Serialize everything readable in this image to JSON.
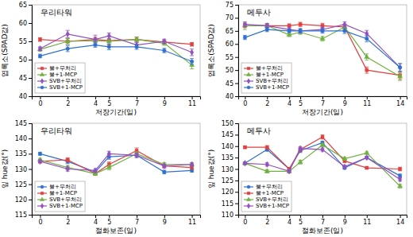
{
  "chart_data": [
    {
      "type": "line",
      "title": "우리타워",
      "xlabel": "저장기간(일)",
      "ylabel": "엽록소(SPAD값)",
      "x": [
        0,
        2,
        4,
        5,
        7,
        9,
        11
      ],
      "xlim": [
        -0.6,
        11.6
      ],
      "xticks": [
        0,
        2,
        4,
        5,
        7,
        9,
        11
      ],
      "ylim": [
        40,
        65
      ],
      "yticks": [
        40,
        45,
        50,
        55,
        60,
        65
      ],
      "grid": false,
      "legend": "lower left",
      "series": [
        {
          "name": "물+무처리",
          "color": "#e04040",
          "marker": "square",
          "values": [
            55.5,
            55.0,
            55.5,
            55.2,
            55.5,
            54.8,
            54.2
          ],
          "errors": [
            0.5,
            0.8,
            0.6,
            1.2,
            0.7,
            0.6,
            0.5
          ]
        },
        {
          "name": "물+1-MCP",
          "color": "#70b040",
          "marker": "triangle",
          "values": [
            52.8,
            55.0,
            55.2,
            55.0,
            55.5,
            54.5,
            48.5
          ],
          "errors": [
            0.5,
            0.8,
            0.6,
            0.8,
            0.7,
            0.6,
            1.0
          ]
        },
        {
          "name": "SVB+무처리",
          "color": "#9050c0",
          "marker": "diamond",
          "values": [
            53.0,
            57.0,
            55.5,
            56.5,
            54.0,
            55.0,
            52.0
          ],
          "errors": [
            0.5,
            1.0,
            1.2,
            0.8,
            0.7,
            0.6,
            0.9
          ]
        },
        {
          "name": "SVB+1-MCP",
          "color": "#3070d0",
          "marker": "circle",
          "values": [
            51.0,
            53.0,
            54.0,
            53.5,
            53.5,
            52.5,
            49.5
          ],
          "errors": [
            0.5,
            0.8,
            0.6,
            0.8,
            0.7,
            0.6,
            0.8
          ]
        }
      ]
    },
    {
      "type": "line",
      "title": "메두사",
      "xlabel": "저장기간(일)",
      "ylabel": "엽록소(SPAD값)",
      "x": [
        0,
        2,
        4,
        5,
        7,
        9,
        11,
        14
      ],
      "xlim": [
        -0.6,
        14.6
      ],
      "xticks": [
        0,
        2,
        4,
        5,
        7,
        9,
        11,
        14
      ],
      "ylim": [
        40,
        75
      ],
      "yticks": [
        40,
        45,
        50,
        55,
        60,
        65,
        70,
        75
      ],
      "grid": false,
      "legend": "lower left",
      "series": [
        {
          "name": "물+무처리",
          "color": "#e04040",
          "marker": "square",
          "values": [
            67.0,
            67.0,
            67.0,
            67.5,
            67.0,
            66.5,
            50.0,
            48.0
          ],
          "errors": [
            0.8,
            0.8,
            0.7,
            0.8,
            0.9,
            1.0,
            1.2,
            1.5
          ]
        },
        {
          "name": "물+1-MCP",
          "color": "#70b040",
          "marker": "triangle",
          "values": [
            67.0,
            67.0,
            63.5,
            64.5,
            62.0,
            66.5,
            55.0,
            47.5
          ],
          "errors": [
            1.5,
            0.8,
            0.7,
            0.8,
            0.9,
            1.0,
            1.2,
            1.5
          ]
        },
        {
          "name": "SVB+무처리",
          "color": "#9050c0",
          "marker": "diamond",
          "values": [
            67.5,
            67.0,
            65.5,
            65.0,
            65.5,
            67.5,
            64.0,
            51.0
          ],
          "errors": [
            0.8,
            0.8,
            0.7,
            0.8,
            0.9,
            1.0,
            1.2,
            1.5
          ]
        },
        {
          "name": "SVB+1-MCP",
          "color": "#3070d0",
          "marker": "circle",
          "values": [
            62.5,
            65.5,
            65.0,
            65.0,
            65.0,
            65.0,
            62.0,
            51.0
          ],
          "errors": [
            0.8,
            0.8,
            0.7,
            0.8,
            0.9,
            1.0,
            1.2,
            1.5
          ]
        }
      ]
    },
    {
      "type": "line",
      "title": "우리타워",
      "xlabel": "절화보존(일)",
      "ylabel": "잎 hue값(°)",
      "x": [
        0,
        2,
        4,
        5,
        7,
        9,
        11
      ],
      "xlim": [
        -0.6,
        11.6
      ],
      "xticks": [
        0,
        2,
        4,
        5,
        7,
        9,
        11
      ],
      "ylim": [
        115,
        145
      ],
      "yticks": [
        115,
        120,
        125,
        130,
        135,
        140,
        145
      ],
      "grid": false,
      "legend": "lower left",
      "series": [
        {
          "name": "물+무처리",
          "color": "#3070d0",
          "marker": "circle",
          "values": [
            135.0,
            132.5,
            129.0,
            134.0,
            134.5,
            129.0,
            129.5
          ],
          "errors": [
            0.5,
            0.7,
            0.6,
            0.8,
            0.7,
            0.6,
            0.5
          ]
        },
        {
          "name": "물+1-MCP",
          "color": "#e04040",
          "marker": "square",
          "values": [
            132.5,
            133.0,
            128.5,
            131.5,
            136.0,
            131.0,
            130.5
          ],
          "errors": [
            0.5,
            0.7,
            0.6,
            0.8,
            0.9,
            0.6,
            0.5
          ]
        },
        {
          "name": "SVB+무처리",
          "color": "#70b040",
          "marker": "triangle",
          "values": [
            133.0,
            130.5,
            128.5,
            130.5,
            135.0,
            131.5,
            131.5
          ],
          "errors": [
            0.5,
            0.7,
            0.6,
            0.8,
            0.7,
            0.6,
            0.5
          ]
        },
        {
          "name": "SVB+1-MCP",
          "color": "#9050c0",
          "marker": "diamond",
          "values": [
            132.5,
            130.0,
            129.5,
            135.0,
            134.5,
            131.0,
            131.5
          ],
          "errors": [
            0.5,
            0.7,
            0.6,
            0.8,
            0.7,
            0.6,
            0.5
          ]
        }
      ]
    },
    {
      "type": "line",
      "title": "메두사",
      "xlabel": "절화보존(일)",
      "ylabel": "잎 hue값(°)",
      "x": [
        0,
        2,
        4,
        5,
        7,
        9,
        11,
        14
      ],
      "xlim": [
        -0.6,
        14.6
      ],
      "xticks": [
        0,
        2,
        4,
        5,
        7,
        9,
        11,
        14
      ],
      "ylim": [
        110,
        150
      ],
      "yticks": [
        110,
        115,
        120,
        125,
        130,
        135,
        140,
        145,
        150
      ],
      "grid": false,
      "legend": "lower left",
      "series": [
        {
          "name": "물+무처리",
          "color": "#3070d0",
          "marker": "circle",
          "values": [
            132.5,
            138.5,
            130.0,
            138.0,
            141.5,
            130.5,
            135.0,
            127.0
          ],
          "errors": [
            0.5,
            0.7,
            0.6,
            0.8,
            0.7,
            0.6,
            0.5,
            0.8
          ]
        },
        {
          "name": "물+1-MCP",
          "color": "#e04040",
          "marker": "square",
          "values": [
            139.5,
            139.5,
            130.0,
            138.5,
            144.0,
            133.5,
            130.5,
            130.0
          ],
          "errors": [
            0.5,
            0.7,
            0.6,
            0.8,
            0.9,
            0.6,
            0.5,
            0.8
          ]
        },
        {
          "name": "SVB+무처리",
          "color": "#70b040",
          "marker": "triangle",
          "values": [
            132.5,
            129.0,
            129.0,
            133.0,
            140.5,
            134.5,
            137.0,
            122.5
          ],
          "errors": [
            0.5,
            0.7,
            0.6,
            0.8,
            0.7,
            0.6,
            0.5,
            0.8
          ]
        },
        {
          "name": "SVB+1-MCP",
          "color": "#9050c0",
          "marker": "diamond",
          "values": [
            132.5,
            132.0,
            129.0,
            139.0,
            138.5,
            131.0,
            135.0,
            125.5
          ],
          "errors": [
            0.5,
            0.7,
            0.6,
            0.8,
            0.7,
            0.6,
            0.5,
            0.8
          ]
        }
      ]
    }
  ]
}
